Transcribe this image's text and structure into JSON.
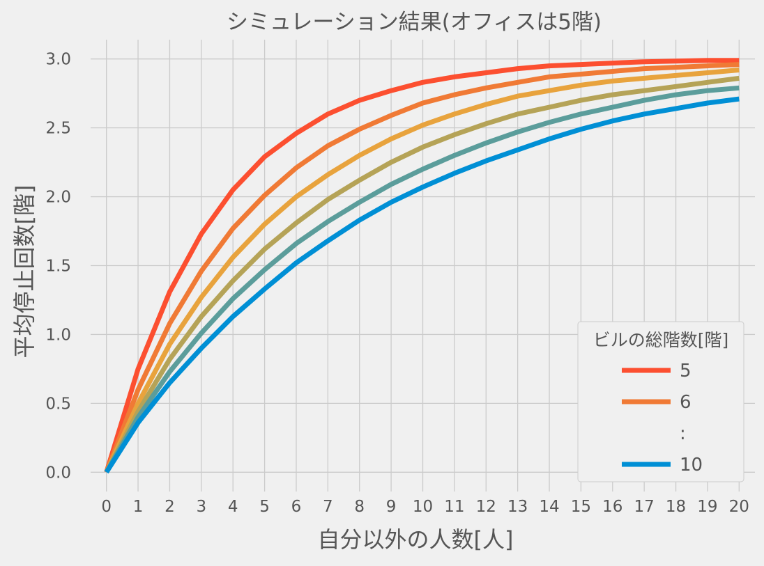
{
  "chart_data": {
    "type": "line",
    "title": "シミュレーション結果(オフィスは5階)",
    "xlabel": "自分以外の人数[人]",
    "ylabel": "平均停止回数[階]",
    "x": [
      0,
      1,
      2,
      3,
      4,
      5,
      6,
      7,
      8,
      9,
      10,
      11,
      12,
      13,
      14,
      15,
      16,
      17,
      18,
      19,
      20
    ],
    "xlim": [
      -0.5,
      20.5
    ],
    "ylim": [
      -0.14,
      3.14
    ],
    "yticks": [
      "0.0",
      "0.5",
      "1.0",
      "1.5",
      "2.0",
      "2.5",
      "3.0"
    ],
    "grid": true,
    "legend": {
      "title": "ビルの総階数[階]",
      "placement": "lower-right",
      "entries": [
        {
          "label": "5",
          "color": "#fc4f30"
        },
        {
          "label": "6",
          "color": "#f07a35"
        },
        {
          "label": ":",
          "color": null
        },
        {
          "label": "10",
          "color": "#008fd5"
        }
      ]
    },
    "series": [
      {
        "name": "5",
        "color": "#fc4f30",
        "values": [
          0,
          0.75,
          1.31,
          1.73,
          2.05,
          2.29,
          2.46,
          2.6,
          2.7,
          2.77,
          2.83,
          2.87,
          2.9,
          2.93,
          2.95,
          2.96,
          2.97,
          2.98,
          2.985,
          2.99,
          2.99
        ]
      },
      {
        "color": "#f07a35",
        "values": [
          0,
          0.6,
          1.08,
          1.46,
          1.77,
          2.01,
          2.21,
          2.37,
          2.49,
          2.59,
          2.68,
          2.74,
          2.79,
          2.83,
          2.87,
          2.89,
          2.91,
          2.93,
          2.94,
          2.95,
          2.96
        ]
      },
      {
        "color": "#e8a33d",
        "values": [
          0,
          0.5,
          0.93,
          1.27,
          1.56,
          1.8,
          2.0,
          2.16,
          2.3,
          2.42,
          2.52,
          2.6,
          2.67,
          2.73,
          2.77,
          2.81,
          2.84,
          2.86,
          2.88,
          2.9,
          2.92
        ]
      },
      {
        "color": "#b5a357",
        "values": [
          0,
          0.44,
          0.82,
          1.13,
          1.39,
          1.62,
          1.81,
          1.98,
          2.12,
          2.25,
          2.36,
          2.45,
          2.53,
          2.6,
          2.65,
          2.7,
          2.74,
          2.77,
          2.8,
          2.83,
          2.86
        ]
      },
      {
        "color": "#5b9d9b",
        "values": [
          0,
          0.4,
          0.73,
          1.01,
          1.26,
          1.47,
          1.66,
          1.82,
          1.96,
          2.09,
          2.2,
          2.3,
          2.39,
          2.47,
          2.54,
          2.6,
          2.65,
          2.7,
          2.74,
          2.77,
          2.79
        ]
      },
      {
        "name": "10",
        "color": "#008fd5",
        "values": [
          0,
          0.36,
          0.65,
          0.9,
          1.13,
          1.33,
          1.52,
          1.68,
          1.83,
          1.96,
          2.07,
          2.17,
          2.26,
          2.34,
          2.42,
          2.49,
          2.55,
          2.6,
          2.64,
          2.68,
          2.71
        ]
      }
    ]
  }
}
